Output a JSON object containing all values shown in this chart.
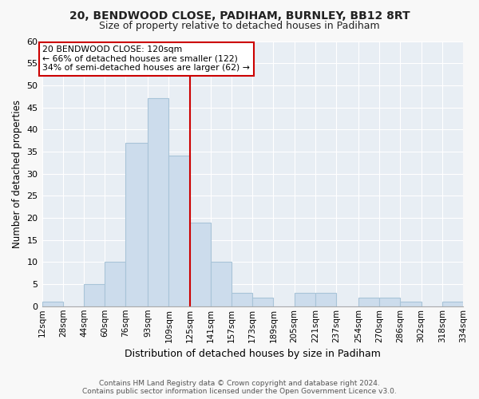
{
  "title": "20, BENDWOOD CLOSE, PADIHAM, BURNLEY, BB12 8RT",
  "subtitle": "Size of property relative to detached houses in Padiham",
  "xlabel": "Distribution of detached houses by size in Padiham",
  "ylabel": "Number of detached properties",
  "bin_edges": [
    12,
    28,
    44,
    60,
    76,
    93,
    109,
    125,
    141,
    157,
    173,
    189,
    205,
    221,
    237,
    254,
    270,
    286,
    302,
    318,
    334
  ],
  "bin_labels": [
    "12sqm",
    "28sqm",
    "44sqm",
    "60sqm",
    "76sqm",
    "93sqm",
    "109sqm",
    "125sqm",
    "141sqm",
    "157sqm",
    "173sqm",
    "189sqm",
    "205sqm",
    "221sqm",
    "237sqm",
    "254sqm",
    "270sqm",
    "286sqm",
    "302sqm",
    "318sqm",
    "334sqm"
  ],
  "counts": [
    1,
    0,
    5,
    10,
    37,
    47,
    34,
    19,
    10,
    3,
    2,
    0,
    3,
    3,
    0,
    2,
    2,
    1,
    0,
    1
  ],
  "bar_color": "#ccdcec",
  "bar_edgecolor": "#a8c4d8",
  "vline_x": 125,
  "vline_color": "#cc0000",
  "ylim": [
    0,
    60
  ],
  "yticks": [
    0,
    5,
    10,
    15,
    20,
    25,
    30,
    35,
    40,
    45,
    50,
    55,
    60
  ],
  "annotation_line1": "20 BENDWOOD CLOSE: 120sqm",
  "annotation_line2": "← 66% of detached houses are smaller (122)",
  "annotation_line3": "34% of semi-detached houses are larger (62) →",
  "annotation_box_color": "#ffffff",
  "annotation_box_edgecolor": "#cc0000",
  "footer_line1": "Contains HM Land Registry data © Crown copyright and database right 2024.",
  "footer_line2": "Contains public sector information licensed under the Open Government Licence v3.0.",
  "fig_background": "#f8f8f8",
  "plot_background": "#e8eef4",
  "grid_color": "#ffffff",
  "title_fontsize": 10,
  "subtitle_fontsize": 9
}
